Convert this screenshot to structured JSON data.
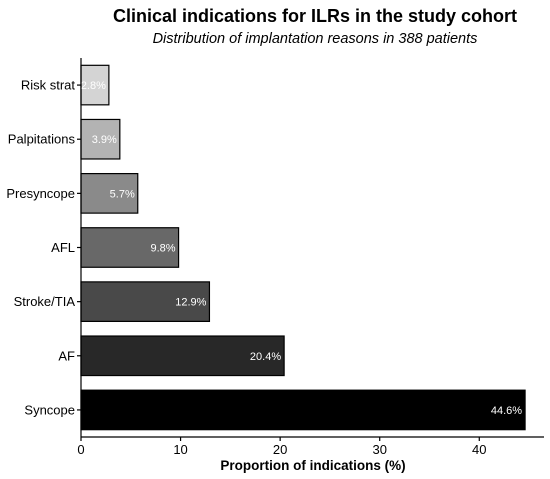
{
  "chart_data": {
    "type": "bar",
    "orientation": "horizontal",
    "title": "Clinical indications for ILRs in the study cohort",
    "subtitle": "Distribution of implantation reasons in 388 patients",
    "xlabel": "Proportion of indications (%)",
    "ylabel": "",
    "xlim": [
      0,
      46.5
    ],
    "xticks": [
      0,
      10,
      20,
      30,
      40
    ],
    "grid": false,
    "categories": [
      "Syncope",
      "AF",
      "Stroke/TIA",
      "AFL",
      "Presyncope",
      "Palpitations",
      "Risk strat"
    ],
    "values": [
      44.6,
      20.4,
      12.9,
      9.8,
      5.7,
      3.9,
      2.8
    ],
    "data_labels": [
      "44.6%",
      "20.4%",
      "12.9%",
      "9.8%",
      "5.7%",
      "3.9%",
      "2.8%"
    ],
    "colors": [
      "#000000",
      "#282828",
      "#494949",
      "#686868",
      "#8a8a8a",
      "#b3b3b3",
      "#d4d4d4"
    ]
  }
}
